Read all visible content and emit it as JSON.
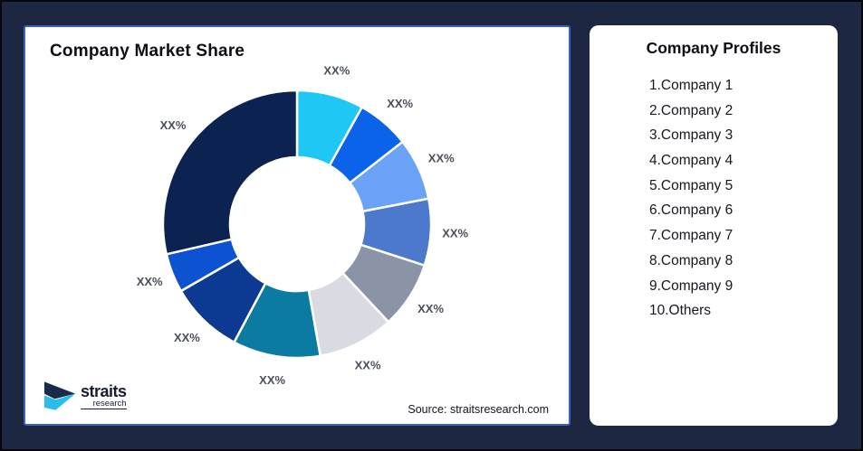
{
  "background_color": "#1d2742",
  "left_card": {
    "title": "Company Market Share",
    "source": "Source: straitsresearch.com",
    "border_color": "#3f62c9"
  },
  "logo": {
    "name": "straits",
    "sub": "research",
    "mark_navy": "#1b2a4a",
    "mark_cyan": "#29bdee"
  },
  "right_card": {
    "title": "Company Profiles",
    "items": [
      "1.Company 1",
      "2.Company 2",
      "3.Company 3",
      "4.Company 4",
      "5.Company 5",
      "6.Company 6",
      "7.Company 7",
      "8.Company 8",
      "9.Company 9",
      "10.Others"
    ]
  },
  "chart_data": {
    "type": "pie",
    "variant": "donut",
    "title": "Company Market Share",
    "inner_radius_ratio": 0.5,
    "angles_clockwise_from_top": true,
    "label_color": "#4a4f5c",
    "segments": [
      {
        "label": "XX%",
        "color": "#1fc7f5",
        "start_deg": 0,
        "end_deg": 29,
        "approx_pct": 8
      },
      {
        "label": "XX%",
        "color": "#0a63e8",
        "start_deg": 29,
        "end_deg": 52,
        "approx_pct": 6.5
      },
      {
        "label": "XX%",
        "color": "#6aa2f7",
        "start_deg": 52,
        "end_deg": 79,
        "approx_pct": 7.5
      },
      {
        "label": "XX%",
        "color": "#4d79cc",
        "start_deg": 79,
        "end_deg": 108,
        "approx_pct": 8
      },
      {
        "label": "XX%",
        "color": "#8b93a7",
        "start_deg": 108,
        "end_deg": 137,
        "approx_pct": 8
      },
      {
        "label": "XX%",
        "color": "#d8dbe1",
        "start_deg": 137,
        "end_deg": 170,
        "approx_pct": 9
      },
      {
        "label": "XX%",
        "color": "#0b7ba2",
        "start_deg": 170,
        "end_deg": 208,
        "approx_pct": 10.5
      },
      {
        "label": "XX%",
        "color": "#0c3a92",
        "start_deg": 208,
        "end_deg": 240,
        "approx_pct": 9
      },
      {
        "label": "XX%",
        "color": "#0d52d1",
        "start_deg": 240,
        "end_deg": 257,
        "approx_pct": 4.5
      },
      {
        "label": "XX%",
        "color": "#0c2250",
        "start_deg": 257,
        "end_deg": 360,
        "approx_pct": 28.5
      }
    ]
  }
}
